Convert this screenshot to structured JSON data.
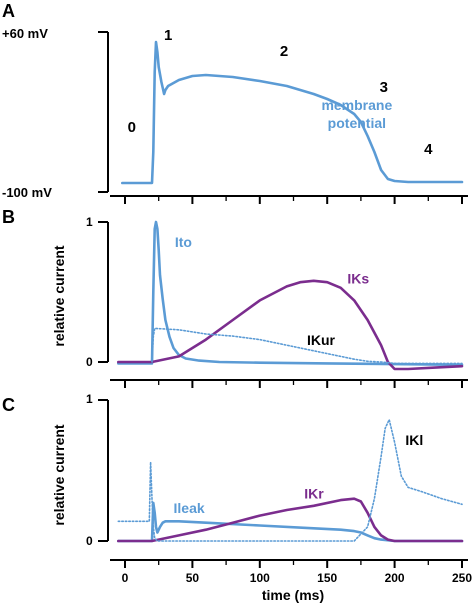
{
  "colors": {
    "blue": "#5b9bd5",
    "purple": "#7b2d8e",
    "axis": "#000000"
  },
  "chart_data": [
    {
      "panel": "A",
      "type": "line",
      "ylabels": {
        "top": "+60 mV",
        "bottom": "-100 mV"
      },
      "ylim": [
        -100,
        60
      ],
      "xlim": [
        -5,
        250
      ],
      "phase_labels": [
        {
          "text": "0",
          "x": 5,
          "y": -40
        },
        {
          "text": "1",
          "x": 32,
          "y": 52
        },
        {
          "text": "2",
          "x": 118,
          "y": 36
        },
        {
          "text": "3",
          "x": 192,
          "y": 0
        },
        {
          "text": "4",
          "x": 225,
          "y": -62
        }
      ],
      "series": [
        {
          "name": "membrane potential",
          "label_lines": [
            "membrane",
            "potential"
          ],
          "color": "#5b9bd5",
          "style": "solid",
          "x": [
            -2,
            18,
            20,
            21,
            22,
            23,
            24,
            25,
            27,
            29,
            30,
            32,
            40,
            50,
            60,
            80,
            100,
            120,
            140,
            150,
            160,
            170,
            175,
            180,
            185,
            190,
            195,
            200,
            210,
            230,
            250
          ],
          "y": [
            -91,
            -91,
            -91,
            -60,
            20,
            50,
            40,
            25,
            10,
            -2,
            2,
            6,
            12,
            16,
            17,
            15,
            11,
            6,
            -2,
            -7,
            -13,
            -22,
            -30,
            -44,
            -60,
            -78,
            -87,
            -89,
            -90,
            -90,
            -90
          ]
        }
      ]
    },
    {
      "panel": "B",
      "type": "line",
      "ylabel": "relative current",
      "ylim": [
        0,
        1
      ],
      "yticks": [
        0,
        1
      ],
      "xlim": [
        -5,
        250
      ],
      "series": [
        {
          "name": "Ito",
          "color": "#5b9bd5",
          "style": "solid",
          "label_pos": {
            "x": 37,
            "y": 0.82
          },
          "x": [
            -5,
            20,
            21,
            22,
            23,
            24,
            25,
            26,
            28,
            30,
            33,
            36,
            40,
            45,
            55,
            70,
            100,
            150,
            200,
            250
          ],
          "y": [
            -0.01,
            -0.01,
            0.5,
            0.95,
            1.0,
            0.95,
            0.8,
            0.62,
            0.45,
            0.3,
            0.18,
            0.1,
            0.05,
            0.025,
            0.01,
            0.0,
            -0.005,
            -0.01,
            -0.015,
            -0.02
          ]
        },
        {
          "name": "IKs",
          "color": "#7b2d8e",
          "style": "solid",
          "label_pos": {
            "x": 165,
            "y": 0.56
          },
          "x": [
            -5,
            20,
            40,
            60,
            80,
            100,
            120,
            130,
            140,
            150,
            160,
            170,
            180,
            190,
            195,
            200,
            210,
            230,
            250
          ],
          "y": [
            0.0,
            0.0,
            0.04,
            0.16,
            0.3,
            0.44,
            0.54,
            0.57,
            0.58,
            0.57,
            0.53,
            0.44,
            0.3,
            0.12,
            0.0,
            -0.05,
            -0.05,
            -0.04,
            -0.03
          ]
        },
        {
          "name": "IKur",
          "color": "#5b9bd5",
          "style": "dotted",
          "label_pos": {
            "x": 135,
            "y": 0.12
          },
          "x": [
            20,
            21,
            22,
            40,
            60,
            80,
            100,
            120,
            140,
            160,
            170,
            180,
            190,
            200,
            220,
            250
          ],
          "y": [
            0.0,
            0.18,
            0.24,
            0.23,
            0.2,
            0.185,
            0.16,
            0.12,
            0.08,
            0.04,
            0.02,
            0.005,
            0.0,
            -0.01,
            -0.01,
            -0.01
          ]
        }
      ]
    },
    {
      "panel": "C",
      "type": "line",
      "ylabel": "relative current",
      "ylim": [
        0,
        1
      ],
      "yticks": [
        0,
        1
      ],
      "xlim": [
        -5,
        250
      ],
      "xticks": [
        0,
        50,
        100,
        150,
        200,
        250
      ],
      "xlabel": "time (ms)",
      "series": [
        {
          "name": "Ileak",
          "color": "#5b9bd5",
          "style": "solid",
          "label_pos": {
            "x": 36,
            "y": 0.2
          },
          "x": [
            -5,
            18,
            20,
            21,
            22,
            23,
            24,
            26,
            28,
            30,
            40,
            60,
            100,
            140,
            160,
            170,
            175,
            180,
            185,
            190,
            200,
            230,
            250
          ],
          "y": [
            0.0,
            0.0,
            0.0,
            0.27,
            0.2,
            0.1,
            0.06,
            0.1,
            0.13,
            0.14,
            0.14,
            0.13,
            0.11,
            0.09,
            0.08,
            0.07,
            0.06,
            0.04,
            0.02,
            0.01,
            0.0,
            0.0,
            0.0
          ]
        },
        {
          "name": "IKr",
          "color": "#7b2d8e",
          "style": "solid",
          "label_pos": {
            "x": 133,
            "y": 0.3
          },
          "x": [
            -5,
            20,
            40,
            60,
            80,
            100,
            120,
            140,
            160,
            170,
            175,
            180,
            185,
            190,
            195,
            200,
            210,
            230,
            250
          ],
          "y": [
            0.0,
            0.0,
            0.04,
            0.08,
            0.13,
            0.18,
            0.22,
            0.25,
            0.29,
            0.3,
            0.28,
            0.2,
            0.1,
            0.04,
            0.01,
            0.0,
            0.0,
            0.0,
            0.0
          ]
        },
        {
          "name": "IKl",
          "color": "#5b9bd5",
          "style": "dotted",
          "label_pos": {
            "x": 208,
            "y": 0.68
          },
          "x": [
            -5,
            18,
            19,
            20,
            21,
            22,
            24,
            30,
            50,
            100,
            150,
            170,
            180,
            185,
            190,
            193,
            196,
            200,
            205,
            210,
            220,
            235,
            250
          ],
          "y": [
            0.14,
            0.14,
            0.56,
            0.3,
            0.1,
            0.02,
            0.0,
            0.0,
            0.0,
            0.0,
            0.0,
            0.0,
            0.1,
            0.3,
            0.6,
            0.8,
            0.86,
            0.7,
            0.46,
            0.38,
            0.35,
            0.3,
            0.26
          ]
        }
      ]
    }
  ]
}
